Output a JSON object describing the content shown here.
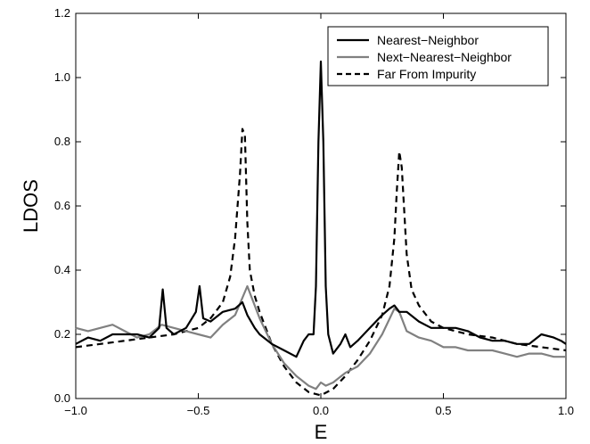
{
  "chart_data": {
    "type": "line",
    "title": "",
    "xlabel": "E",
    "ylabel": "LDOS",
    "xlim": [
      -1.0,
      1.0
    ],
    "ylim": [
      0.0,
      1.2
    ],
    "xticks": [
      -1.0,
      -0.5,
      0.0,
      0.5,
      1.0
    ],
    "xtick_labels": [
      "−1.0",
      "−0.5",
      "0.0",
      "0.5",
      "1.0"
    ],
    "yticks": [
      0.0,
      0.2,
      0.4,
      0.6,
      0.8,
      1.0,
      1.2
    ],
    "ytick_labels": [
      "0.0",
      "0.2",
      "0.4",
      "0.6",
      "0.8",
      "1.0",
      "1.2"
    ],
    "grid": false,
    "legend_position": "top-right",
    "series": [
      {
        "name": "Nearest−Neighbor",
        "color": "#000000",
        "style": "solid",
        "x": [
          -1.0,
          -0.95,
          -0.9,
          -0.85,
          -0.8,
          -0.75,
          -0.7,
          -0.66,
          -0.645,
          -0.63,
          -0.6,
          -0.55,
          -0.51,
          -0.495,
          -0.48,
          -0.45,
          -0.4,
          -0.35,
          -0.32,
          -0.3,
          -0.27,
          -0.25,
          -0.2,
          -0.15,
          -0.1,
          -0.07,
          -0.05,
          -0.03,
          -0.02,
          -0.01,
          0.0,
          0.01,
          0.02,
          0.03,
          0.05,
          0.08,
          0.1,
          0.12,
          0.15,
          0.2,
          0.25,
          0.28,
          0.3,
          0.32,
          0.35,
          0.4,
          0.45,
          0.5,
          0.55,
          0.6,
          0.65,
          0.7,
          0.75,
          0.8,
          0.85,
          0.9,
          0.95,
          0.98,
          1.0
        ],
        "y": [
          0.17,
          0.19,
          0.18,
          0.2,
          0.2,
          0.2,
          0.19,
          0.22,
          0.34,
          0.22,
          0.2,
          0.22,
          0.27,
          0.35,
          0.25,
          0.24,
          0.27,
          0.28,
          0.3,
          0.26,
          0.22,
          0.2,
          0.17,
          0.15,
          0.13,
          0.18,
          0.2,
          0.2,
          0.35,
          0.8,
          1.05,
          0.8,
          0.35,
          0.2,
          0.14,
          0.17,
          0.2,
          0.16,
          0.18,
          0.22,
          0.26,
          0.28,
          0.29,
          0.27,
          0.27,
          0.24,
          0.22,
          0.22,
          0.22,
          0.21,
          0.19,
          0.18,
          0.18,
          0.17,
          0.17,
          0.2,
          0.19,
          0.18,
          0.17
        ]
      },
      {
        "name": "Next−Nearest−Neighbor",
        "color": "#808080",
        "style": "solid",
        "x": [
          -1.0,
          -0.95,
          -0.9,
          -0.85,
          -0.8,
          -0.75,
          -0.7,
          -0.65,
          -0.6,
          -0.55,
          -0.5,
          -0.45,
          -0.4,
          -0.35,
          -0.3,
          -0.25,
          -0.2,
          -0.15,
          -0.1,
          -0.05,
          -0.02,
          0.0,
          0.02,
          0.05,
          0.1,
          0.15,
          0.2,
          0.25,
          0.3,
          0.32,
          0.35,
          0.4,
          0.45,
          0.5,
          0.55,
          0.6,
          0.65,
          0.7,
          0.75,
          0.8,
          0.85,
          0.9,
          0.95,
          1.0
        ],
        "y": [
          0.22,
          0.21,
          0.22,
          0.23,
          0.21,
          0.19,
          0.2,
          0.23,
          0.22,
          0.21,
          0.2,
          0.19,
          0.23,
          0.26,
          0.35,
          0.25,
          0.17,
          0.11,
          0.07,
          0.04,
          0.03,
          0.05,
          0.04,
          0.05,
          0.08,
          0.1,
          0.14,
          0.2,
          0.28,
          0.27,
          0.21,
          0.19,
          0.18,
          0.16,
          0.16,
          0.15,
          0.15,
          0.15,
          0.14,
          0.13,
          0.14,
          0.14,
          0.13,
          0.13
        ]
      },
      {
        "name": "Far From Impurity",
        "color": "#000000",
        "style": "dashed",
        "x": [
          -1.0,
          -0.9,
          -0.8,
          -0.7,
          -0.6,
          -0.5,
          -0.45,
          -0.4,
          -0.37,
          -0.35,
          -0.33,
          -0.32,
          -0.31,
          -0.3,
          -0.29,
          -0.27,
          -0.25,
          -0.2,
          -0.15,
          -0.1,
          -0.05,
          0.0,
          0.05,
          0.1,
          0.15,
          0.2,
          0.25,
          0.28,
          0.3,
          0.31,
          0.32,
          0.33,
          0.35,
          0.37,
          0.4,
          0.45,
          0.5,
          0.6,
          0.7,
          0.8,
          0.9,
          1.0
        ],
        "y": [
          0.16,
          0.17,
          0.18,
          0.19,
          0.2,
          0.22,
          0.25,
          0.3,
          0.38,
          0.5,
          0.7,
          0.84,
          0.82,
          0.55,
          0.4,
          0.32,
          0.27,
          0.17,
          0.1,
          0.05,
          0.02,
          0.01,
          0.03,
          0.07,
          0.12,
          0.18,
          0.26,
          0.35,
          0.5,
          0.65,
          0.77,
          0.72,
          0.45,
          0.34,
          0.29,
          0.24,
          0.22,
          0.2,
          0.19,
          0.17,
          0.16,
          0.15
        ]
      }
    ]
  }
}
